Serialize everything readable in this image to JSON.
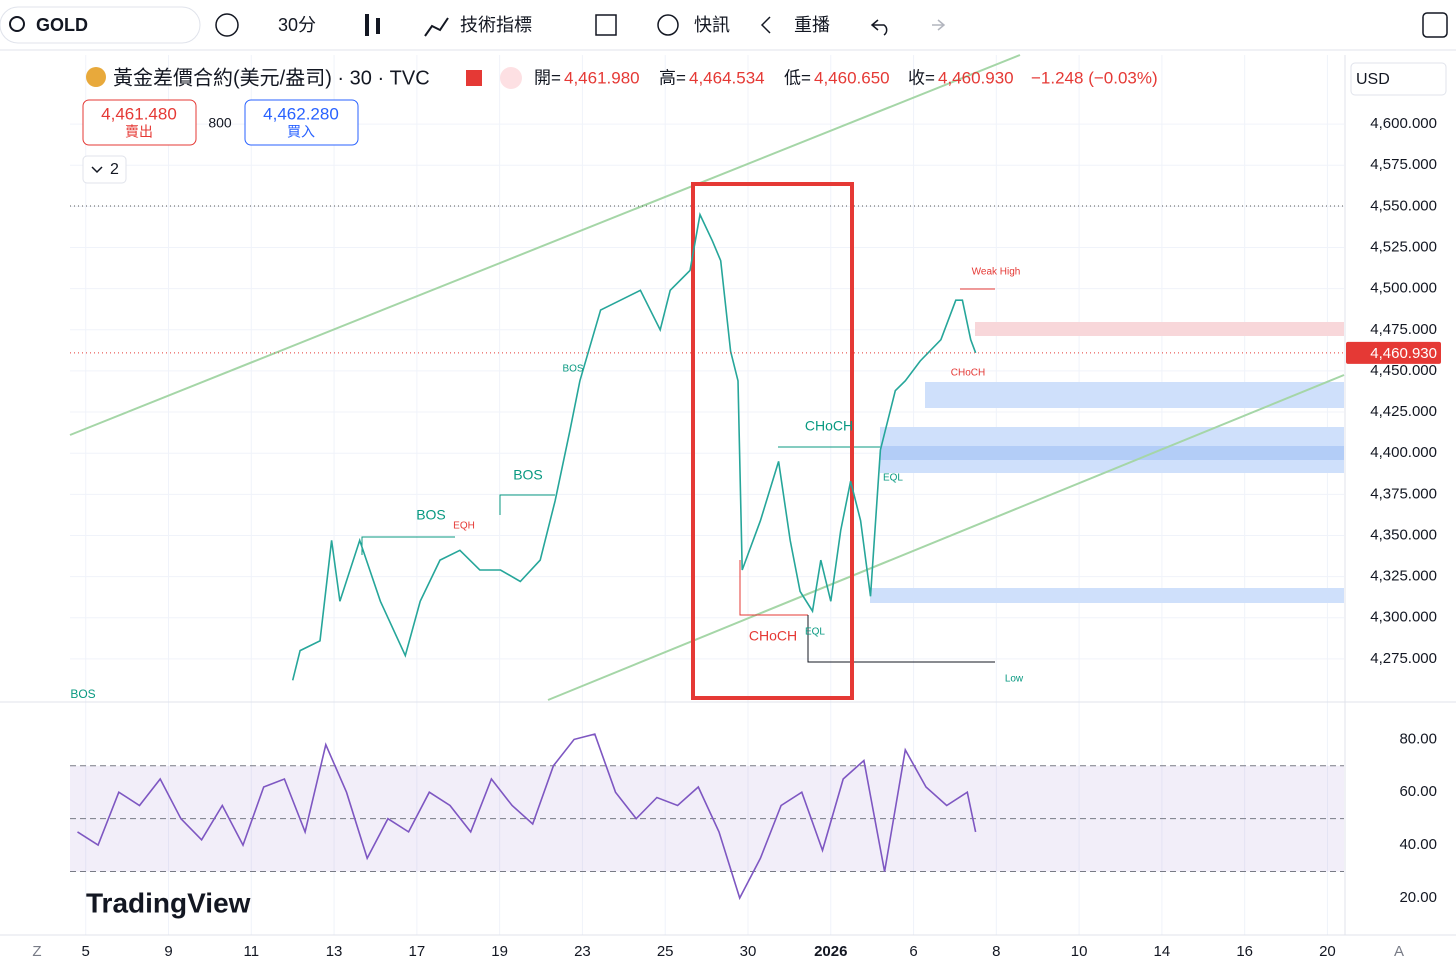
{
  "toolbar": {
    "symbol": "GOLD",
    "interval": "30分",
    "indicators": "技術指標",
    "alerts": "快訊",
    "replay": "重播"
  },
  "header": {
    "title": "黃金差價合約(美元/盎司) · 30 · TVC",
    "ohlc": [
      {
        "label": "開=",
        "value": "4,461.980"
      },
      {
        "label": "高=",
        "value": "4,464.534"
      },
      {
        "label": "低=",
        "value": "4,460.650"
      },
      {
        "label": "收=",
        "value": "4,460.930"
      }
    ],
    "change": "−1.248 (−0.03%)",
    "sell": {
      "price": "4,461.480",
      "label": "賣出"
    },
    "spread": "800",
    "buy": {
      "price": "4,462.280",
      "label": "買入"
    },
    "indicators_count": "2",
    "currency": "USD"
  },
  "watermark": "TradingView",
  "bottom_bar": {
    "left": "Z",
    "right": "A"
  },
  "chart_data": [
    {
      "type": "line",
      "name": "price",
      "x": [
        2.5,
        2.59,
        2.83,
        2.97,
        3.07,
        3.31,
        3.56,
        3.86,
        4.04,
        4.28,
        4.52,
        4.76,
        5.01,
        5.25,
        5.49,
        5.67,
        5.85,
        5.97,
        6.22,
        6.46,
        6.7,
        6.94,
        7.06,
        7.3,
        7.42,
        7.57,
        7.67,
        7.79,
        7.88,
        7.93,
        8.15,
        8.37,
        8.51,
        8.63,
        8.78,
        8.88,
        9.0,
        9.12,
        9.24,
        9.36,
        9.48,
        9.6,
        9.78,
        9.9,
        10.08,
        10.33,
        10.51,
        10.59,
        10.69,
        10.75
      ],
      "values": [
        4262,
        4280,
        4286,
        4347,
        4310,
        4347,
        4310,
        4277,
        4310,
        4335,
        4341,
        4329,
        4329,
        4322,
        4335,
        4371,
        4414,
        4444,
        4487,
        4493,
        4499,
        4475,
        4499,
        4511,
        4545,
        4529,
        4517,
        4462,
        4444,
        4329,
        4359,
        4395,
        4347,
        4316,
        4304,
        4335,
        4310,
        4353,
        4383,
        4359,
        4313,
        4402,
        4438,
        4444,
        4456,
        4469,
        4493,
        4493,
        4469,
        4461
      ],
      "color": "#26a69a",
      "xlim": [
        -0.19,
        15.2
      ],
      "ylim": [
        4250,
        4642
      ],
      "xticks": [
        {
          "value": 0,
          "label": "5"
        },
        {
          "value": 1,
          "label": "9"
        },
        {
          "value": 2,
          "label": "11"
        },
        {
          "value": 3,
          "label": "13"
        },
        {
          "value": 4,
          "label": "17"
        },
        {
          "value": 5,
          "label": "19"
        },
        {
          "value": 6,
          "label": "23"
        },
        {
          "value": 7,
          "label": "25"
        },
        {
          "value": 8,
          "label": "30"
        },
        {
          "value": 9,
          "label": "2026"
        },
        {
          "value": 10,
          "label": "6"
        },
        {
          "value": 11,
          "label": "8"
        },
        {
          "value": 12,
          "label": "10"
        },
        {
          "value": 13,
          "label": "14"
        },
        {
          "value": 14,
          "label": "16"
        },
        {
          "value": 15,
          "label": "20"
        }
      ],
      "yticks": [
        {
          "value": 4275,
          "label": "4,275.000"
        },
        {
          "value": 4300,
          "label": "4,300.000"
        },
        {
          "value": 4325,
          "label": "4,325.000"
        },
        {
          "value": 4350,
          "label": "4,350.000"
        },
        {
          "value": 4375,
          "label": "4,375.000"
        },
        {
          "value": 4400,
          "label": "4,400.000"
        },
        {
          "value": 4425,
          "label": "4,425.000"
        },
        {
          "value": 4450,
          "label": "4,450.000"
        },
        {
          "value": 4475,
          "label": "4,475.000"
        },
        {
          "value": 4500,
          "label": "4,500.000"
        },
        {
          "value": 4525,
          "label": "4,525.000"
        },
        {
          "value": 4550,
          "label": "4,550.000"
        },
        {
          "value": 4575,
          "label": "4,575.000"
        },
        {
          "value": 4600,
          "label": "4,600.000"
        }
      ],
      "last_price": {
        "value": 4460.93,
        "label": "4,460.930"
      },
      "grid": true,
      "annotations": [
        "BOS",
        "BOS",
        "CHoCH",
        "CHoCH",
        "Weak High",
        "CHoCH",
        "EQL",
        "Low",
        "EQL",
        "BOS",
        "BOS",
        "EQH"
      ]
    },
    {
      "type": "line",
      "name": "rsi",
      "x": [
        -0.1,
        0.15,
        0.4,
        0.65,
        0.9,
        1.15,
        1.4,
        1.65,
        1.9,
        2.15,
        2.4,
        2.65,
        2.9,
        3.15,
        3.4,
        3.65,
        3.9,
        4.15,
        4.4,
        4.65,
        4.9,
        5.15,
        5.4,
        5.65,
        5.9,
        6.15,
        6.4,
        6.65,
        6.9,
        7.15,
        7.4,
        7.65,
        7.9,
        8.15,
        8.4,
        8.65,
        8.9,
        9.15,
        9.4,
        9.65,
        9.9,
        10.15,
        10.4,
        10.65,
        10.75
      ],
      "values": [
        45,
        40,
        60,
        55,
        65,
        50,
        42,
        55,
        40,
        62,
        65,
        45,
        78,
        60,
        35,
        50,
        45,
        60,
        55,
        45,
        65,
        55,
        48,
        70,
        80,
        82,
        60,
        50,
        58,
        55,
        62,
        45,
        20,
        35,
        55,
        60,
        38,
        65,
        72,
        30,
        76,
        62,
        55,
        60,
        45
      ],
      "color": "#7e57c2",
      "xlim": [
        -0.19,
        15.2
      ],
      "ylim": [
        6,
        93
      ],
      "yticks": [
        {
          "value": 20,
          "label": "20.00"
        },
        {
          "value": 40,
          "label": "40.00"
        },
        {
          "value": 60,
          "label": "60.00"
        },
        {
          "value": 80,
          "label": "80.00"
        }
      ],
      "levels": [
        30,
        50,
        70
      ]
    }
  ]
}
